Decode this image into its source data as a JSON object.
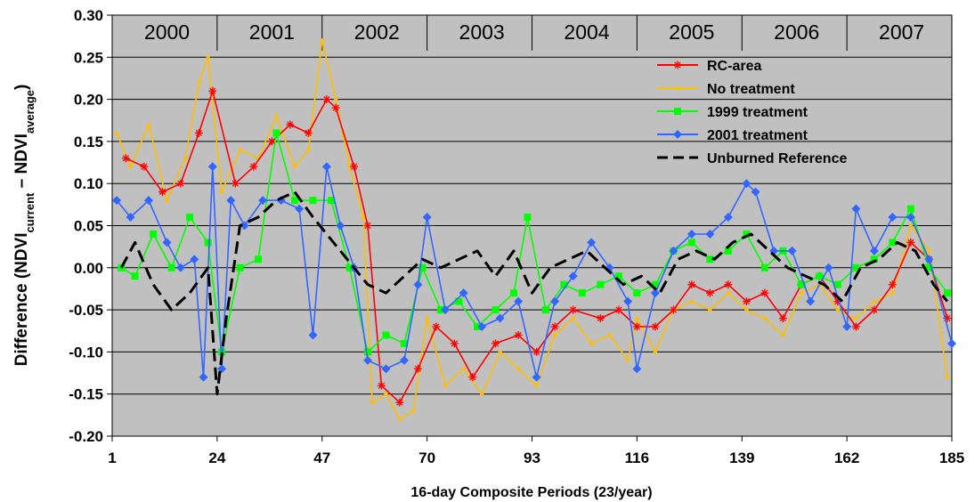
{
  "chart_data": {
    "type": "line",
    "title": "",
    "xlabel": "16-day Composite Periods (23/year)",
    "ylabel": {
      "prefix": "Difference  (NDVI",
      "sub1": "current",
      "mid": " – NDVI",
      "sub2": "average",
      "suffix": ")"
    },
    "xlim": [
      1,
      185
    ],
    "ylim": [
      -0.2,
      0.3
    ],
    "x_ticks": [
      1,
      24,
      47,
      70,
      93,
      116,
      139,
      162,
      185
    ],
    "y_ticks": [
      -0.2,
      -0.15,
      -0.1,
      -0.05,
      0.0,
      0.05,
      0.1,
      0.15,
      0.2,
      0.25,
      0.3
    ],
    "y_tick_labels": [
      "-0.20",
      "-0.15",
      "-0.10",
      "-0.05",
      "0.00",
      "0.05",
      "0.10",
      "0.15",
      "0.20",
      "0.25",
      "0.30"
    ],
    "grid": "horizontal",
    "plot_background": "#c0c0c0",
    "year_labels": [
      {
        "label": "2000",
        "x": 13
      },
      {
        "label": "2001",
        "x": 36
      },
      {
        "label": "2002",
        "x": 59
      },
      {
        "label": "2003",
        "x": 82
      },
      {
        "label": "2004",
        "x": 105
      },
      {
        "label": "2005",
        "x": 128
      },
      {
        "label": "2006",
        "x": 151
      },
      {
        "label": "2007",
        "x": 174
      }
    ],
    "year_dividers": [
      24,
      47,
      70,
      93,
      116,
      139,
      162
    ],
    "legend_position": "top-right",
    "series": [
      {
        "name": "RC-area",
        "color": "#ff0000",
        "marker": "asterisk",
        "x": [
          4,
          8,
          12,
          16,
          20,
          23,
          28,
          32,
          36,
          40,
          44,
          48,
          50,
          54,
          57,
          60,
          64,
          68,
          72,
          76,
          80,
          85,
          90,
          94,
          98,
          102,
          108,
          112,
          116,
          120,
          124,
          128,
          132,
          136,
          140,
          144,
          148,
          152,
          156,
          160,
          164,
          168,
          172,
          176,
          180,
          184
        ],
        "y": [
          0.13,
          0.12,
          0.09,
          0.1,
          0.16,
          0.21,
          0.1,
          0.12,
          0.15,
          0.17,
          0.16,
          0.2,
          0.19,
          0.12,
          0.05,
          -0.14,
          -0.16,
          -0.12,
          -0.07,
          -0.09,
          -0.13,
          -0.09,
          -0.08,
          -0.1,
          -0.07,
          -0.05,
          -0.06,
          -0.05,
          -0.07,
          -0.07,
          -0.05,
          -0.02,
          -0.03,
          -0.02,
          -0.04,
          -0.03,
          -0.06,
          -0.02,
          -0.01,
          -0.04,
          -0.07,
          -0.05,
          -0.02,
          0.03,
          0.01,
          -0.06
        ]
      },
      {
        "name": "No treatment",
        "color": "#ffbf00",
        "marker": "dot",
        "x": [
          2,
          5,
          9,
          13,
          17,
          20,
          22,
          25,
          29,
          33,
          37,
          41,
          44,
          47,
          50,
          53,
          56,
          58,
          61,
          64,
          67,
          70,
          74,
          78,
          82,
          86,
          90,
          94,
          98,
          102,
          106,
          110,
          114,
          116,
          120,
          124,
          128,
          132,
          136,
          140,
          144,
          148,
          152,
          156,
          160,
          164,
          168,
          172,
          176,
          180,
          184
        ],
        "y": [
          0.16,
          0.12,
          0.17,
          0.08,
          0.13,
          0.22,
          0.25,
          0.09,
          0.14,
          0.13,
          0.18,
          0.12,
          0.14,
          0.27,
          0.2,
          0.12,
          0.06,
          -0.16,
          -0.15,
          -0.18,
          -0.17,
          -0.06,
          -0.14,
          -0.12,
          -0.15,
          -0.1,
          -0.12,
          -0.14,
          -0.08,
          -0.06,
          -0.09,
          -0.08,
          -0.11,
          -0.06,
          -0.1,
          -0.05,
          -0.04,
          -0.05,
          -0.03,
          -0.05,
          -0.06,
          -0.08,
          -0.03,
          -0.02,
          -0.05,
          -0.06,
          -0.04,
          -0.03,
          0.05,
          0.02,
          -0.13
        ]
      },
      {
        "name": "1999 treatment",
        "color": "#00ff00",
        "marker": "square",
        "x": [
          3,
          6,
          10,
          14,
          18,
          22,
          25,
          29,
          33,
          37,
          41,
          45,
          49,
          53,
          57,
          61,
          65,
          69,
          73,
          77,
          81,
          85,
          89,
          92,
          96,
          100,
          104,
          108,
          112,
          116,
          120,
          124,
          128,
          132,
          136,
          140,
          144,
          148,
          152,
          156,
          160,
          164,
          168,
          172,
          176,
          180,
          184
        ],
        "y": [
          0.0,
          -0.01,
          0.04,
          0.0,
          0.06,
          0.03,
          -0.1,
          0.0,
          0.01,
          0.16,
          0.08,
          0.08,
          0.08,
          0.0,
          -0.1,
          -0.08,
          -0.09,
          0.0,
          -0.05,
          -0.04,
          -0.07,
          -0.05,
          -0.03,
          0.06,
          -0.05,
          -0.02,
          -0.03,
          -0.02,
          -0.01,
          -0.03,
          -0.02,
          0.02,
          0.03,
          0.01,
          0.02,
          0.04,
          0.0,
          0.02,
          -0.02,
          -0.01,
          -0.02,
          0.0,
          0.01,
          0.03,
          0.07,
          0.0,
          -0.03
        ]
      },
      {
        "name": "2001 treatment",
        "color": "#3366ff",
        "marker": "diamond",
        "x": [
          2,
          5,
          9,
          13,
          16,
          19,
          21,
          23,
          25,
          27,
          30,
          34,
          38,
          42,
          45,
          48,
          51,
          54,
          57,
          61,
          65,
          68,
          70,
          74,
          78,
          82,
          86,
          90,
          94,
          98,
          102,
          106,
          110,
          114,
          116,
          120,
          124,
          128,
          132,
          136,
          140,
          142,
          146,
          150,
          154,
          158,
          162,
          164,
          168,
          172,
          176,
          180,
          185
        ],
        "y": [
          0.08,
          0.06,
          0.08,
          0.03,
          0.0,
          0.01,
          -0.13,
          0.12,
          -0.12,
          0.08,
          0.05,
          0.08,
          0.08,
          0.07,
          -0.08,
          0.12,
          0.05,
          0.0,
          -0.11,
          -0.12,
          -0.11,
          -0.02,
          0.06,
          -0.05,
          -0.03,
          -0.07,
          -0.06,
          -0.04,
          -0.13,
          -0.04,
          -0.01,
          0.03,
          0.0,
          -0.04,
          -0.12,
          -0.03,
          0.02,
          0.04,
          0.04,
          0.06,
          0.1,
          0.09,
          0.02,
          0.02,
          -0.04,
          0.0,
          -0.07,
          0.07,
          0.02,
          0.06,
          0.06,
          0.01,
          -0.09
        ]
      },
      {
        "name": "Unburned Reference",
        "color": "#000000",
        "marker": "none",
        "dash": true,
        "x": [
          3,
          6,
          10,
          14,
          18,
          22,
          24,
          26,
          29,
          33,
          37,
          41,
          45,
          48,
          51,
          54,
          57,
          61,
          65,
          69,
          73,
          77,
          81,
          85,
          89,
          93,
          97,
          101,
          105,
          109,
          113,
          117,
          121,
          125,
          129,
          133,
          137,
          141,
          145,
          149,
          153,
          157,
          161,
          165,
          169,
          173,
          177,
          181,
          184
        ],
        "y": [
          0.0,
          0.03,
          -0.02,
          -0.05,
          -0.03,
          0.0,
          -0.15,
          -0.06,
          0.05,
          0.06,
          0.08,
          0.09,
          0.06,
          0.04,
          0.02,
          0.0,
          -0.02,
          -0.03,
          -0.01,
          0.01,
          0.0,
          0.01,
          0.02,
          -0.01,
          0.02,
          -0.03,
          0.0,
          0.01,
          0.02,
          0.0,
          -0.02,
          -0.01,
          -0.03,
          0.01,
          0.02,
          0.01,
          0.03,
          0.04,
          0.02,
          0.0,
          -0.01,
          -0.02,
          -0.04,
          0.0,
          0.01,
          0.03,
          0.02,
          -0.02,
          -0.04
        ]
      }
    ]
  }
}
